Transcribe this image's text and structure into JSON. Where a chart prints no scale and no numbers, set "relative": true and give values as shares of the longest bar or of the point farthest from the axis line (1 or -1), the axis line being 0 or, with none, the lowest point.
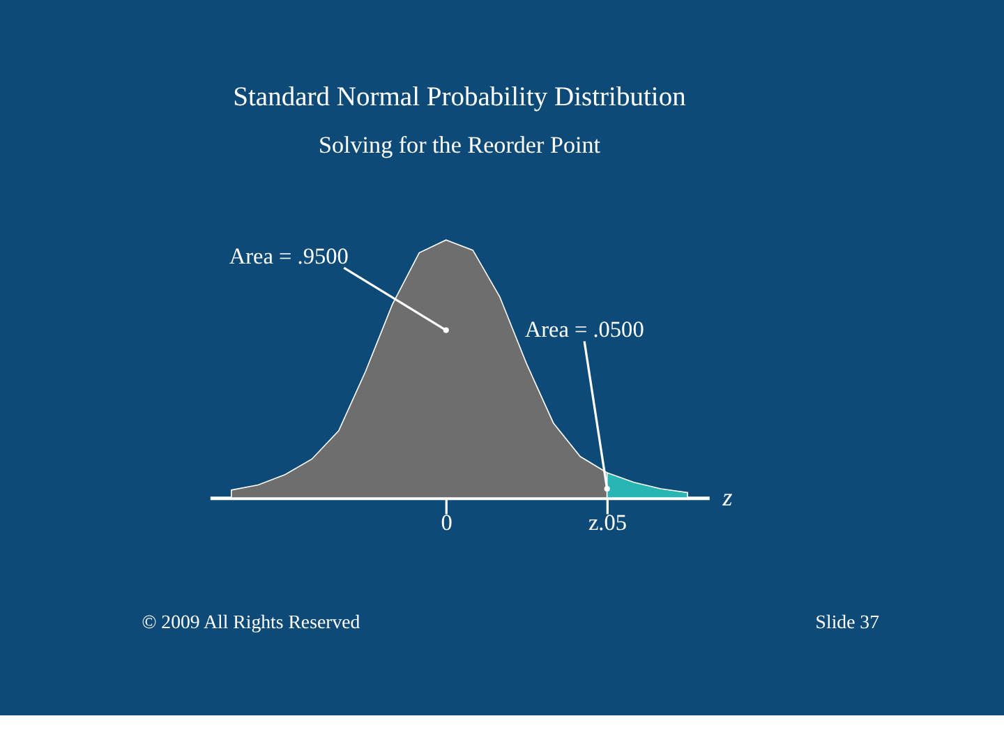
{
  "chart_data": {
    "type": "area",
    "title": "Standard Normal Probability Distribution",
    "subtitle": "Solving for the Reorder Point",
    "xlabel": "z",
    "relative": true,
    "categories": [
      null,
      null,
      null,
      null,
      null,
      null,
      null,
      null,
      "0",
      null,
      null,
      null,
      null,
      null,
      "z.05",
      null,
      null,
      null
    ],
    "series": [
      {
        "color": "#6e6e6e",
        "values": [
          0.03,
          0.05,
          0.09,
          0.15,
          0.26,
          0.49,
          0.75,
          0.95,
          1.0,
          0.96,
          0.78,
          0.52,
          0.29,
          0.16,
          0.097,
          null,
          null,
          null
        ]
      },
      {
        "color": "#2ab5b5",
        "values": [
          null,
          null,
          null,
          null,
          null,
          null,
          null,
          null,
          null,
          null,
          null,
          null,
          null,
          null,
          0.097,
          0.06,
          0.035,
          0.02
        ]
      }
    ],
    "tick_labels": "x",
    "grid": false,
    "annotations": [
      {
        "text": "Area = .9500",
        "x": "0",
        "y": 0.65
      },
      {
        "text": "Area = .0500",
        "x": "z.05",
        "y": 0.035
      },
      "© 2009 All Rights Reserved",
      "Slide 37"
    ]
  }
}
